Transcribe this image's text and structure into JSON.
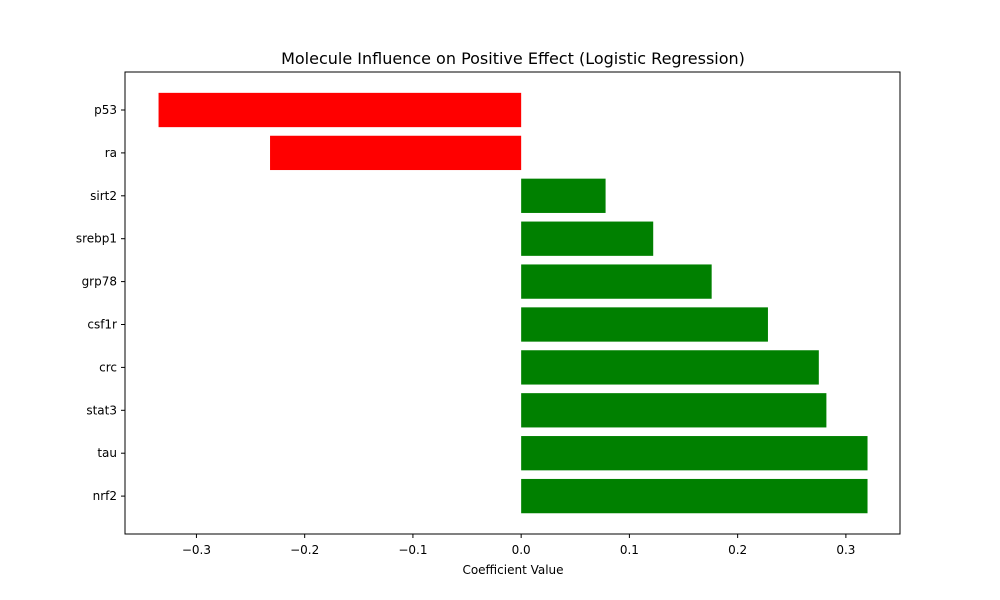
{
  "chart_data": {
    "type": "bar",
    "orientation": "horizontal",
    "title": "Molecule Influence on Positive Effect (Logistic Regression)",
    "xlabel": "Coefficient Value",
    "ylabel": "",
    "categories": [
      "p53",
      "ra",
      "sirt2",
      "srebp1",
      "grp78",
      "csf1r",
      "crc",
      "stat3",
      "tau",
      "nrf2"
    ],
    "values": [
      -0.335,
      -0.232,
      0.078,
      0.122,
      0.176,
      0.228,
      0.275,
      0.282,
      0.32,
      0.32
    ],
    "xlim": [
      -0.366,
      0.35
    ],
    "xticks": [
      -0.3,
      -0.2,
      -0.1,
      0.0,
      0.1,
      0.2,
      0.3
    ],
    "xtick_labels": [
      "−0.3",
      "−0.2",
      "−0.1",
      "0.0",
      "0.1",
      "0.2",
      "0.3"
    ],
    "colors": {
      "positive": "#008000",
      "negative": "#ff0000"
    },
    "grid": false,
    "legend": "none"
  }
}
